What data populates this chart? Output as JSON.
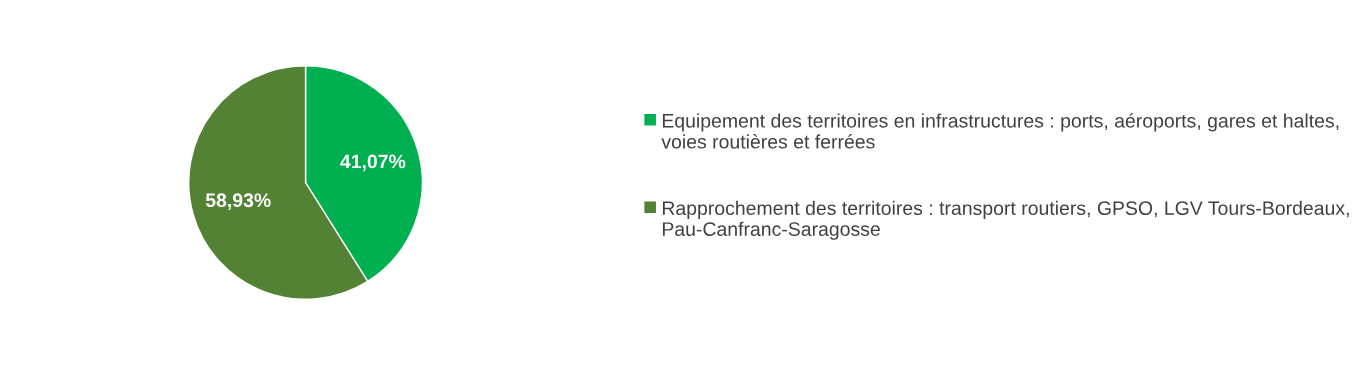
{
  "chart_data": {
    "type": "pie",
    "categories": [
      "Equipement des territoires en infrastructures : ports, aéroports, gares et haltes, voies routières et ferrées",
      "Rapprochement des territoires : transport routiers, GPSO, LGV Tours-Bordeaux, Pau-Canfranc-Saragosse"
    ],
    "values": [
      41.07,
      58.93
    ],
    "colors": [
      "#00b050",
      "#548235"
    ],
    "value_labels": [
      "41,07%",
      "58,93%"
    ],
    "legend": "right"
  }
}
